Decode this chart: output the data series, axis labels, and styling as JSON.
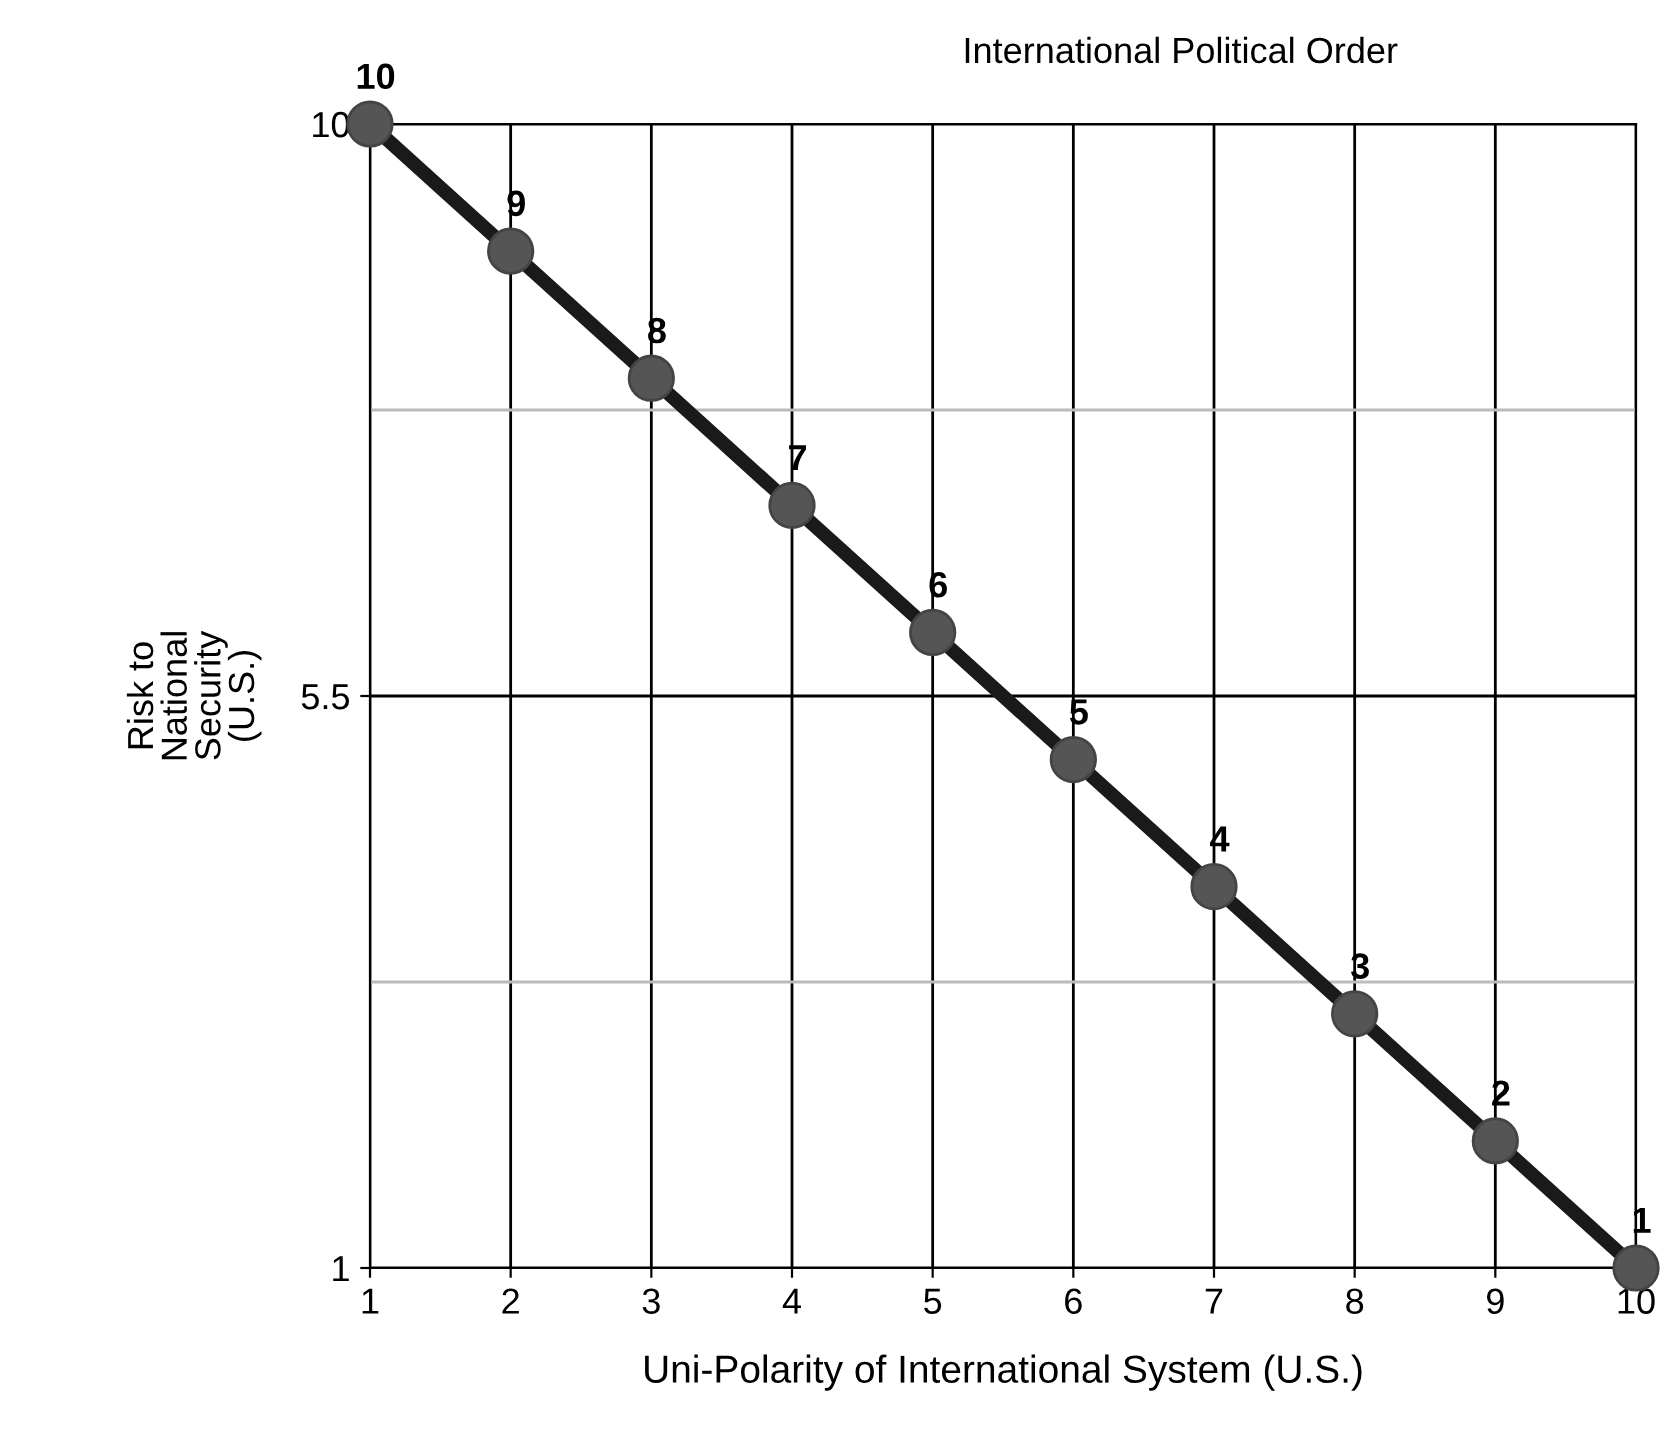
{
  "chart_data": {
    "type": "line",
    "title": "International Political Order",
    "xlabel": "Uni-Polarity of International System (U.S.)",
    "ylabel": "Risk to\nNational\nSecurity\n(U.S.)",
    "x": [
      1,
      2,
      3,
      4,
      5,
      6,
      7,
      8,
      9,
      10
    ],
    "series": [
      {
        "color": "#1a1a1a",
        "values": [
          10,
          9,
          8,
          7,
          6,
          5,
          4,
          3,
          2,
          1
        ]
      }
    ],
    "marker": "circle",
    "line_style": "solid",
    "data_labels": true,
    "grid": true,
    "xlim": [
      1,
      10
    ],
    "ylim": [
      1,
      10
    ],
    "xticks": [
      1,
      2,
      3,
      4,
      5,
      6,
      7,
      8,
      9,
      10
    ],
    "yticks": [
      1,
      {
        "value": 3.25,
        "label": null
      },
      5.5,
      {
        "value": 7.75,
        "label": null
      },
      10
    ]
  }
}
